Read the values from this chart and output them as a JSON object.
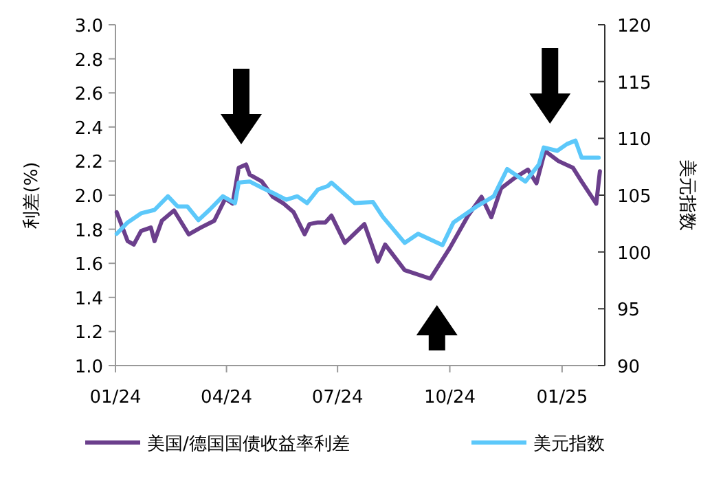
{
  "chart_data": {
    "type": "line",
    "xlabel": null,
    "ylabel": "利差(%)",
    "y2label": "美元指数",
    "xlim": [
      "2024-01-01",
      "2025-02-05"
    ],
    "xticks": [
      {
        "value": "2024-01-01",
        "label": "01/24"
      },
      {
        "value": "2024-04-01",
        "label": "04/24"
      },
      {
        "value": "2024-07-01",
        "label": "07/24"
      },
      {
        "value": "2024-10-01",
        "label": "10/24"
      },
      {
        "value": "2025-01-01",
        "label": "01/25"
      }
    ],
    "ylim": [
      1.0,
      3.0
    ],
    "yticks": [
      {
        "value": 1.0,
        "label": "1.0"
      },
      {
        "value": 1.2,
        "label": "1.2"
      },
      {
        "value": 1.4,
        "label": "1.4"
      },
      {
        "value": 1.6,
        "label": "1.6"
      },
      {
        "value": 1.8,
        "label": "1.8"
      },
      {
        "value": 2.0,
        "label": "2.0"
      },
      {
        "value": 2.2,
        "label": "2.2"
      },
      {
        "value": 2.4,
        "label": "2.4"
      },
      {
        "value": 2.6,
        "label": "2.6"
      },
      {
        "value": 2.8,
        "label": "2.8"
      },
      {
        "value": 3.0,
        "label": "3.0"
      }
    ],
    "y2lim": [
      90,
      120
    ],
    "y2ticks": [
      90,
      95,
      100,
      105,
      110,
      115,
      120
    ],
    "legend": "bottom",
    "series": [
      {
        "name": "美国/德国国债收益率利差",
        "color": "#6b3f8c",
        "x": [
          "2024-01-02",
          "2024-01-11",
          "2024-01-16",
          "2024-01-22",
          "2024-01-30",
          "2024-02-02",
          "2024-02-08",
          "2024-02-18",
          "2024-03-01",
          "2024-03-11",
          "2024-03-22",
          "2024-03-31",
          "2024-04-06",
          "2024-04-11",
          "2024-04-17",
          "2024-04-20",
          "2024-04-30",
          "2024-05-09",
          "2024-05-18",
          "2024-05-26",
          "2024-06-04",
          "2024-06-08",
          "2024-06-15",
          "2024-06-21",
          "2024-06-26",
          "2024-07-07",
          "2024-07-23",
          "2024-08-03",
          "2024-08-09",
          "2024-08-25",
          "2024-09-15",
          "2024-10-01",
          "2024-10-16",
          "2024-10-27",
          "2024-11-04",
          "2024-11-12",
          "2024-11-23",
          "2024-12-04",
          "2024-12-11",
          "2024-12-18",
          "2024-12-29",
          "2025-01-10",
          "2025-01-17",
          "2025-01-29",
          "2025-02-01"
        ],
        "values": [
          1.9,
          1.73,
          1.71,
          1.79,
          1.81,
          1.73,
          1.85,
          1.91,
          1.77,
          1.81,
          1.85,
          1.98,
          1.95,
          2.16,
          2.18,
          2.12,
          2.08,
          1.99,
          1.95,
          1.9,
          1.77,
          1.83,
          1.84,
          1.84,
          1.88,
          1.72,
          1.83,
          1.61,
          1.71,
          1.56,
          1.51,
          1.69,
          1.88,
          1.99,
          1.87,
          2.04,
          2.1,
          2.15,
          2.07,
          2.26,
          2.2,
          2.16,
          2.08,
          1.95,
          2.14
        ]
      },
      {
        "name": "美元指数",
        "color": "#5cc8fa",
        "axis": "y2",
        "x": [
          "2024-01-02",
          "2024-01-11",
          "2024-01-22",
          "2024-02-02",
          "2024-02-13",
          "2024-02-21",
          "2024-02-29",
          "2024-03-09",
          "2024-03-18",
          "2024-03-29",
          "2024-04-08",
          "2024-04-11",
          "2024-04-20",
          "2024-05-01",
          "2024-05-09",
          "2024-05-20",
          "2024-05-29",
          "2024-06-06",
          "2024-06-15",
          "2024-06-23",
          "2024-06-26",
          "2024-07-15",
          "2024-07-30",
          "2024-08-07",
          "2024-08-25",
          "2024-09-05",
          "2024-09-25",
          "2024-10-04",
          "2024-10-23",
          "2024-11-06",
          "2024-11-17",
          "2024-12-02",
          "2024-12-13",
          "2024-12-17",
          "2024-12-28",
          "2025-01-05",
          "2025-01-12",
          "2025-01-17",
          "2025-01-31"
        ],
        "values": [
          101.6,
          102.6,
          103.4,
          103.7,
          104.9,
          104.0,
          104.0,
          102.8,
          103.7,
          104.9,
          104.3,
          106.1,
          106.2,
          105.6,
          105.2,
          104.6,
          104.9,
          104.3,
          105.5,
          105.8,
          106.1,
          104.3,
          104.4,
          103.1,
          100.8,
          101.6,
          100.6,
          102.6,
          104.0,
          104.9,
          107.3,
          106.2,
          107.7,
          109.2,
          108.9,
          109.5,
          109.8,
          108.3,
          108.3
        ]
      }
    ]
  }
}
